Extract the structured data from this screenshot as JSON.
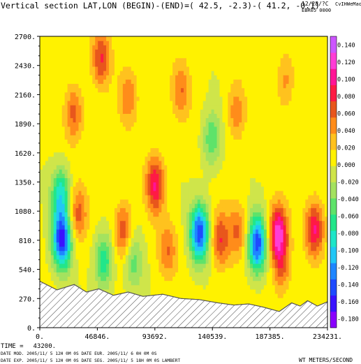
{
  "header": {
    "title": "Vertical section LAT,LON (BEGIN)-(END)=( 42.5, -2.3)-( 41.2, -0.1)",
    "date_code": "12/28/?C",
    "run_code": "EBR05 0000",
    "tag": "CvIHWeMao"
  },
  "footer": {
    "time_label": "TIME =",
    "time_value": "43200.",
    "line1": "DATE MOD. 2005/11/ 5  12H 0M 0S    DATE EUR. 2005/11/ 6   0H 0M 0S",
    "line2": "DATE EXP. 2005/11/ 5  12H 0M 0S    DATE SEG. 2005/11/ 5  18H 0M 0S   LAMBERT",
    "units": "WT METERS/SECOND"
  },
  "colors": {
    "levels": [
      "#8a00ff",
      "#3a12ff",
      "#1f4bff",
      "#1f86ff",
      "#22c7f6",
      "#1fe6c9",
      "#22e68a",
      "#5ee36a",
      "#a4e25f",
      "#cfe54a",
      "#fff200",
      "#ffc21e",
      "#ff8c1a",
      "#e8561c",
      "#ff1a44",
      "#ff1496",
      "#ff3cd6",
      "#cc55ff"
    ],
    "terrain_hatch": "#555555"
  },
  "chart_data": {
    "type": "heatmap",
    "title": "Vertical section LAT,LON (BEGIN)-(END)=( 42.5, -2.3)-( 41.2, -0.1)",
    "xlabel": "",
    "ylabel": "",
    "xlim": [
      0,
      234231
    ],
    "ylim": [
      0,
      2700
    ],
    "x_ticks": [
      "0.",
      "46846.",
      "93692.",
      "140539.",
      "187385.",
      "234231."
    ],
    "y_ticks": [
      "0.",
      "270.",
      "540.",
      "810.",
      "1080.",
      "1350.",
      "1620.",
      "1890.",
      "2160.",
      "2430.",
      "2700."
    ],
    "colorbar_ticks": [
      "-0.180",
      "-0.160",
      "-0.140",
      "-0.120",
      "-0.100",
      "-0.080",
      "-0.060",
      "-0.040",
      "-0.020",
      "0.000",
      "0.020",
      "0.040",
      "0.060",
      "0.080",
      "0.100",
      "0.120",
      "0.140"
    ],
    "colorbar_range": [
      -0.19,
      0.15
    ],
    "units": "METERS/SECOND",
    "field": "WT",
    "terrain": {
      "x": [
        0,
        14000,
        28000,
        38000,
        48000,
        60000,
        72000,
        84000,
        100000,
        115000,
        130000,
        145000,
        158000,
        170000,
        182000,
        195000,
        205000,
        212000,
        218000,
        226000,
        234231
      ],
      "height": [
        430,
        350,
        400,
        330,
        360,
        300,
        330,
        290,
        310,
        270,
        260,
        230,
        210,
        220,
        190,
        150,
        230,
        200,
        250,
        200,
        240
      ]
    },
    "features": [
      {
        "x": 18000,
        "z": 810,
        "w": -0.16
      },
      {
        "x": 17000,
        "z": 1230,
        "w": -0.09
      },
      {
        "x": 31000,
        "z": 1050,
        "w": 0.06
      },
      {
        "x": 52000,
        "z": 620,
        "w": -0.08
      },
      {
        "x": 68000,
        "z": 900,
        "w": 0.07
      },
      {
        "x": 76000,
        "z": 620,
        "w": -0.05
      },
      {
        "x": 94000,
        "z": 1330,
        "w": 0.09
      },
      {
        "x": 104000,
        "z": 720,
        "w": 0.05
      },
      {
        "x": 130000,
        "z": 880,
        "w": -0.15
      },
      {
        "x": 147000,
        "z": 820,
        "w": 0.07
      },
      {
        "x": 161000,
        "z": 900,
        "w": 0.05
      },
      {
        "x": 177000,
        "z": 780,
        "w": -0.15
      },
      {
        "x": 194000,
        "z": 880,
        "w": 0.12
      },
      {
        "x": 197000,
        "z": 560,
        "w": 0.05
      },
      {
        "x": 224000,
        "z": 920,
        "w": 0.09
      },
      {
        "x": 50000,
        "z": 2500,
        "w": 0.07
      },
      {
        "x": 28000,
        "z": 2000,
        "w": 0.06
      },
      {
        "x": 72000,
        "z": 2150,
        "w": 0.05
      },
      {
        "x": 115000,
        "z": 2200,
        "w": 0.05
      },
      {
        "x": 140000,
        "z": 1750,
        "w": -0.06
      },
      {
        "x": 160000,
        "z": 2000,
        "w": 0.05
      },
      {
        "x": 200000,
        "z": 2300,
        "w": 0.04
      }
    ]
  }
}
